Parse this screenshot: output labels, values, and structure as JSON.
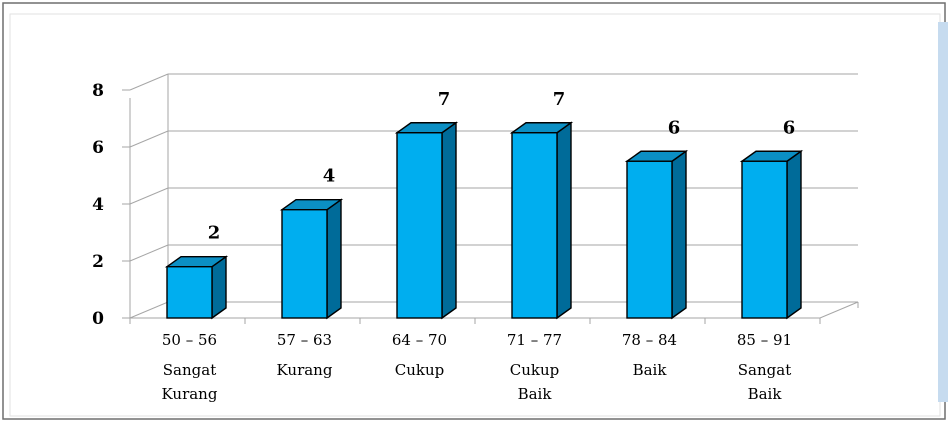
{
  "chart_data": {
    "type": "bar",
    "title": "",
    "xlabel": "",
    "ylabel": "",
    "ylim": [
      0,
      8
    ],
    "yticks": [
      0,
      2,
      4,
      6,
      8
    ],
    "grid": true,
    "style": "3d",
    "categories": [
      {
        "range": "50 – 56",
        "lines": [
          "Sangat",
          "Kurang"
        ]
      },
      {
        "range": "57 – 63",
        "lines": [
          "Kurang"
        ]
      },
      {
        "range": "64 – 70",
        "lines": [
          "Cukup"
        ]
      },
      {
        "range": "71 – 77",
        "lines": [
          "Cukup",
          "Baik"
        ]
      },
      {
        "range": "78 – 84",
        "lines": [
          "Baik"
        ]
      },
      {
        "range": "85 – 91",
        "lines": [
          "Sangat",
          "Baik"
        ]
      }
    ],
    "values": [
      2,
      4,
      7,
      7,
      6,
      6
    ],
    "data_labels": [
      "2",
      "4",
      "7",
      "7",
      "6",
      "6"
    ],
    "bar_plotted_heights": [
      1.8,
      3.8,
      6.5,
      6.5,
      5.5,
      5.5
    ],
    "colors": {
      "bar_front": "#00aeef",
      "bar_side": "#006b99",
      "bar_top": "#0b8fc4",
      "grid": "#a6a6a6",
      "text": "#000000",
      "side_panel": "#c6dbef"
    }
  }
}
